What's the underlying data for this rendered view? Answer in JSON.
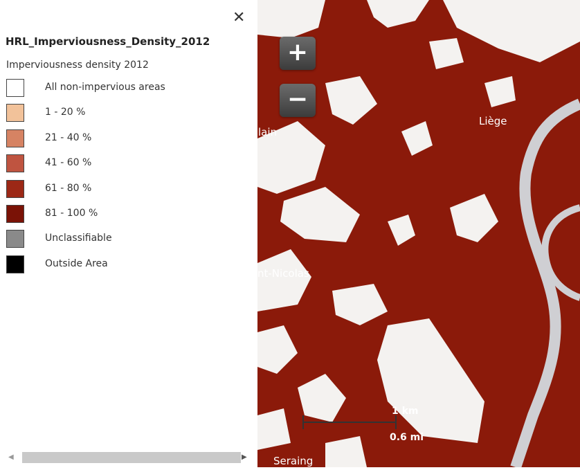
{
  "legend": {
    "layer_title": "HRL_Imperviousness_Density_2012",
    "subtitle": "Imperviousness density 2012",
    "close_icon": "close-icon",
    "items": [
      {
        "label": "All non-impervious areas",
        "color": "#ffffff"
      },
      {
        "label": "1 - 20 %",
        "color": "#f2c29a"
      },
      {
        "label": "21 - 40 %",
        "color": "#d68363"
      },
      {
        "label": "41 - 60 %",
        "color": "#bf5440"
      },
      {
        "label": "61 - 80 %",
        "color": "#9c2816"
      },
      {
        "label": "81 - 100 %",
        "color": "#7a1206"
      },
      {
        "label": "Unclassifiable",
        "color": "#8a8a8a"
      },
      {
        "label": "Outside Area",
        "color": "#000000"
      }
    ],
    "scroll_left_icon": "chevron-left-icon",
    "scroll_right_icon": "chevron-right-icon"
  },
  "map": {
    "zoom_in_label": "+",
    "zoom_out_label": "−",
    "place_labels": [
      "Liège",
      "lain",
      "nt-Nicolas",
      "Seraing"
    ],
    "scale_km": "1 km",
    "scale_mi": "0.6 mi",
    "colors": {
      "impervious": "#8b1a0a",
      "river": "#cfcfd3",
      "background": "#f4f2f0"
    }
  }
}
